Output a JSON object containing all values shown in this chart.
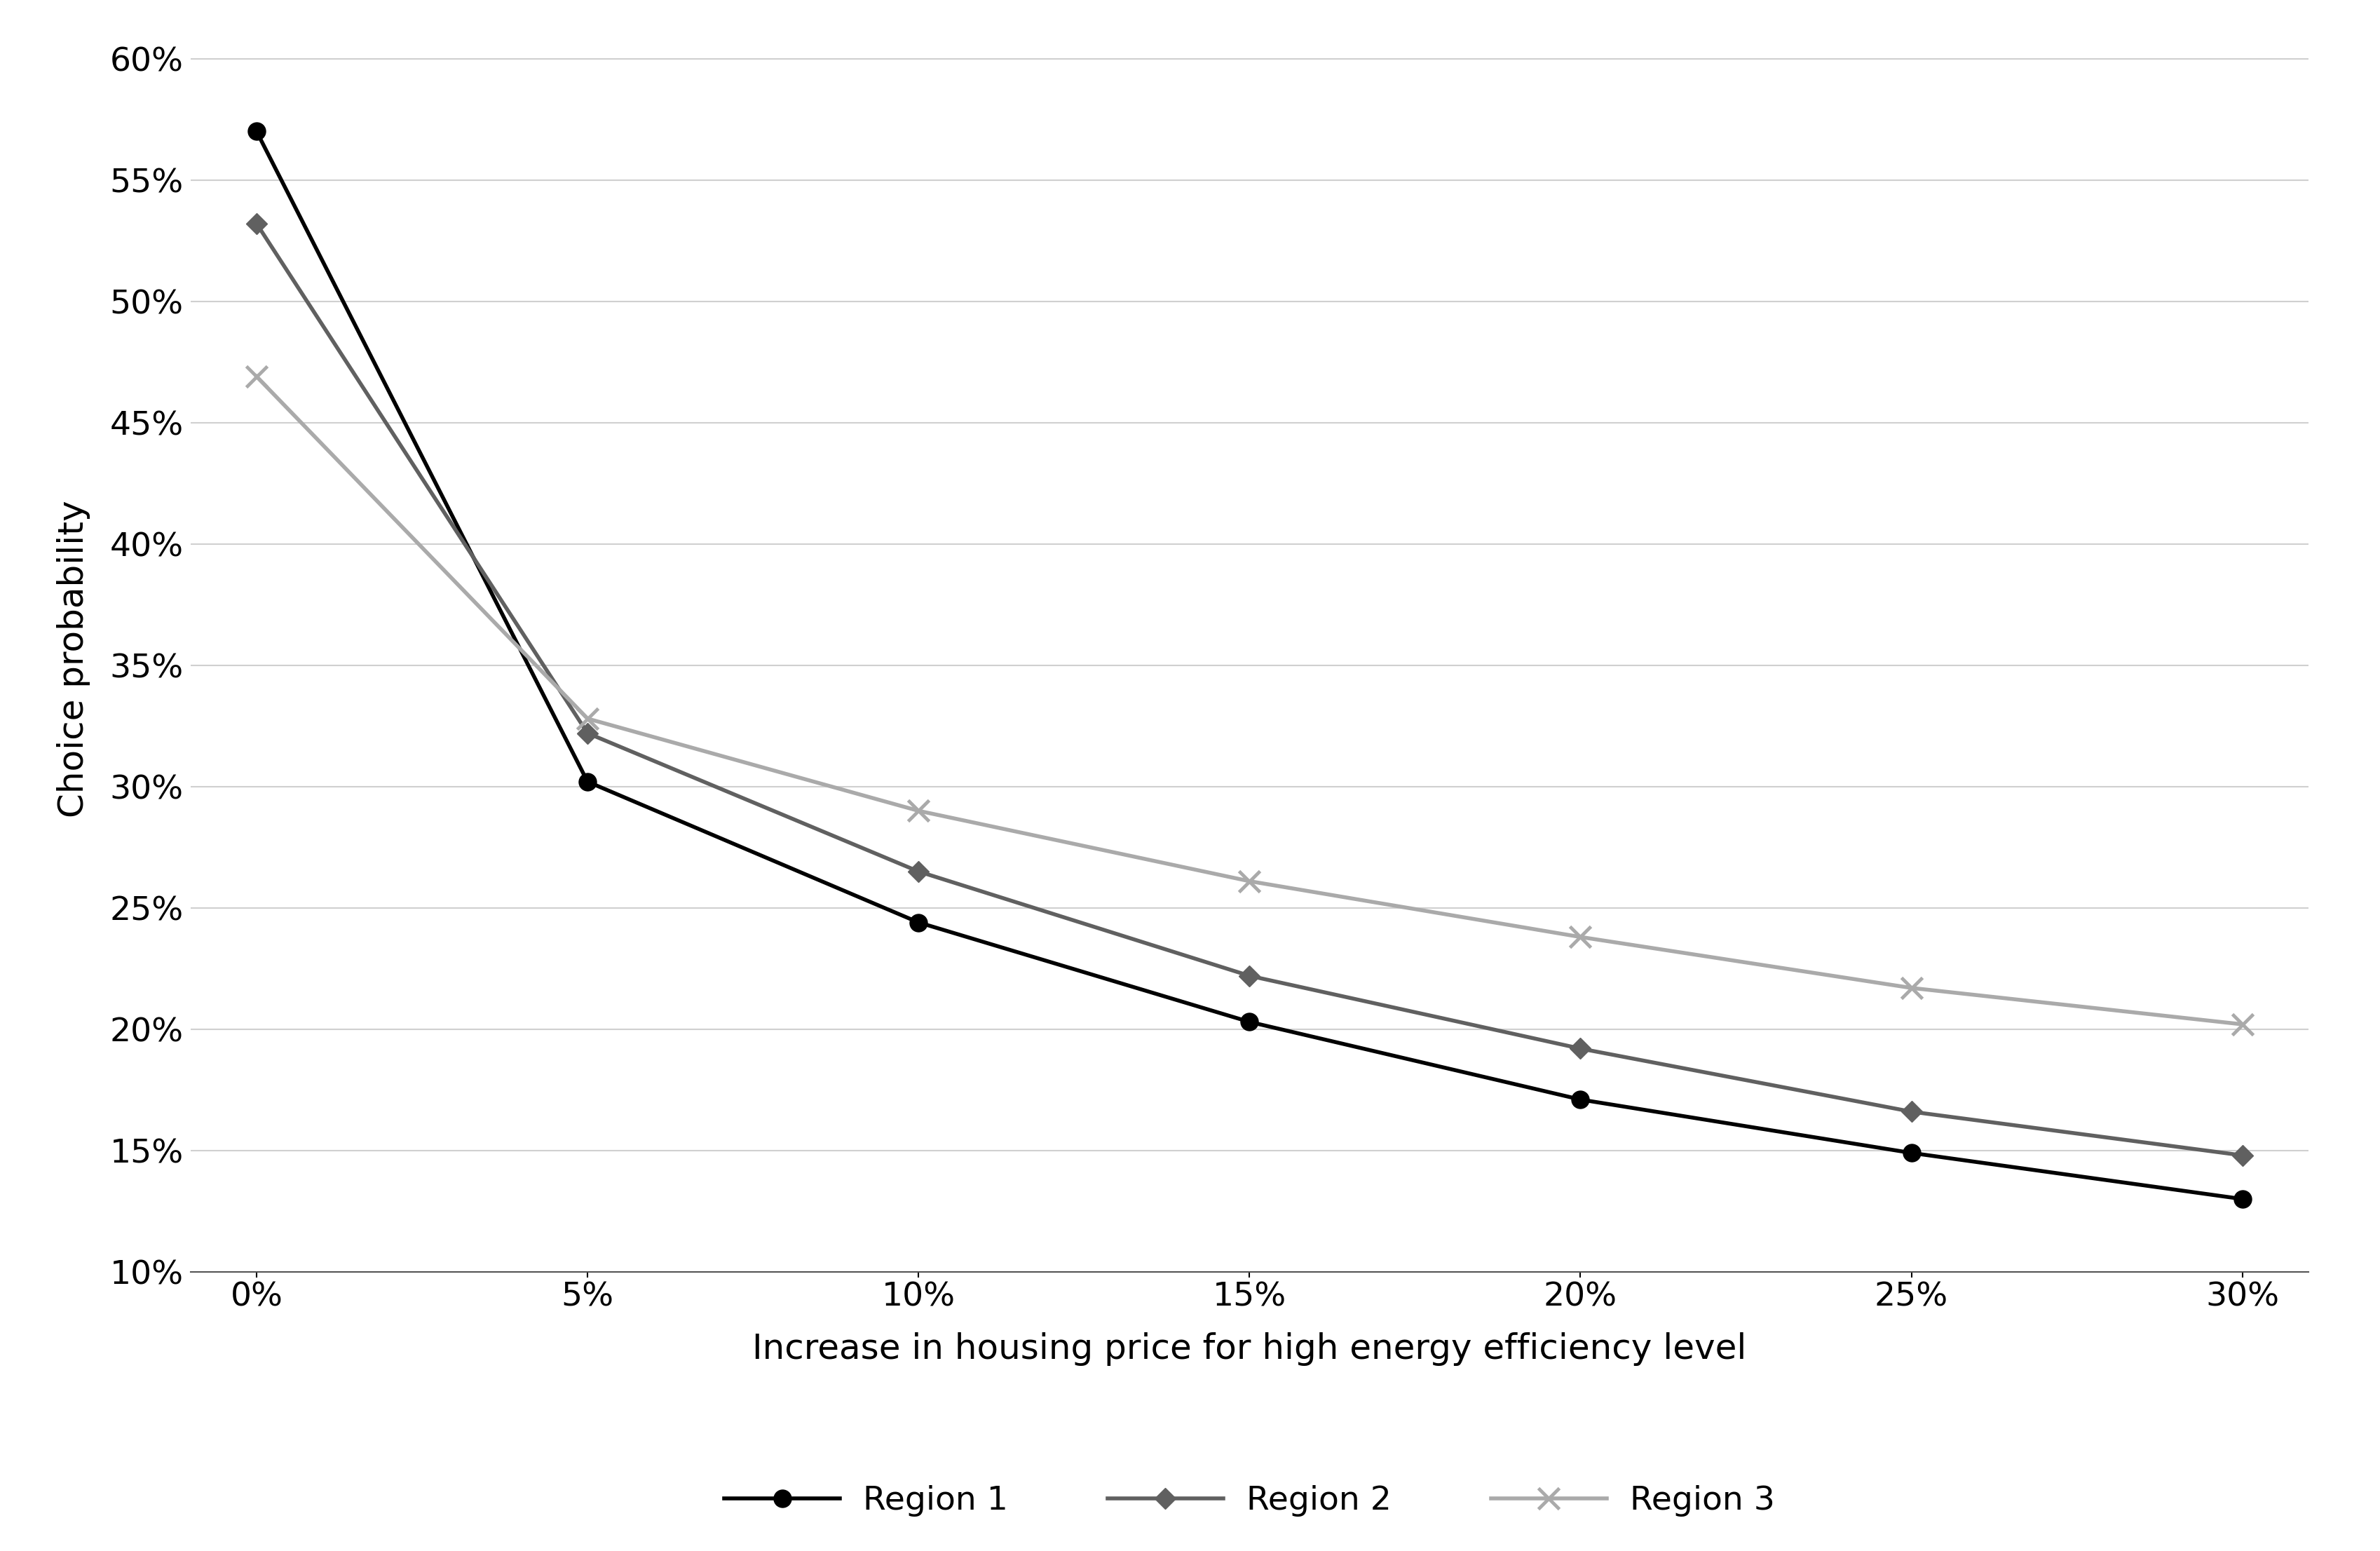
{
  "x_labels": [
    "0%",
    "5%",
    "10%",
    "15%",
    "20%",
    "25%",
    "30%"
  ],
  "x_values": [
    0,
    5,
    10,
    15,
    20,
    25,
    30
  ],
  "region1": [
    0.57,
    0.302,
    0.244,
    0.203,
    0.171,
    0.149,
    0.13
  ],
  "region2": [
    0.532,
    0.322,
    0.265,
    0.222,
    0.192,
    0.166,
    0.148
  ],
  "region3": [
    0.469,
    0.328,
    0.29,
    0.261,
    0.238,
    0.217,
    0.202
  ],
  "region1_color": "#000000",
  "region2_color": "#606060",
  "region3_color": "#aaaaaa",
  "region1_label": "Region 1",
  "region2_label": "Region 2",
  "region3_label": "Region 3",
  "xlabel": "Increase in housing price for high energy efficiency level",
  "ylabel": "Choice probability",
  "ylim_min": 0.1,
  "ylim_max": 0.6,
  "yticks": [
    0.1,
    0.15,
    0.2,
    0.25,
    0.3,
    0.35,
    0.4,
    0.45,
    0.5,
    0.55,
    0.6
  ],
  "background_color": "#ffffff",
  "grid_color": "#d0d0d0",
  "xlabel_fontsize": 36,
  "ylabel_fontsize": 36,
  "tick_fontsize": 34,
  "legend_fontsize": 34,
  "linewidth": 4.0,
  "markersize": 18
}
